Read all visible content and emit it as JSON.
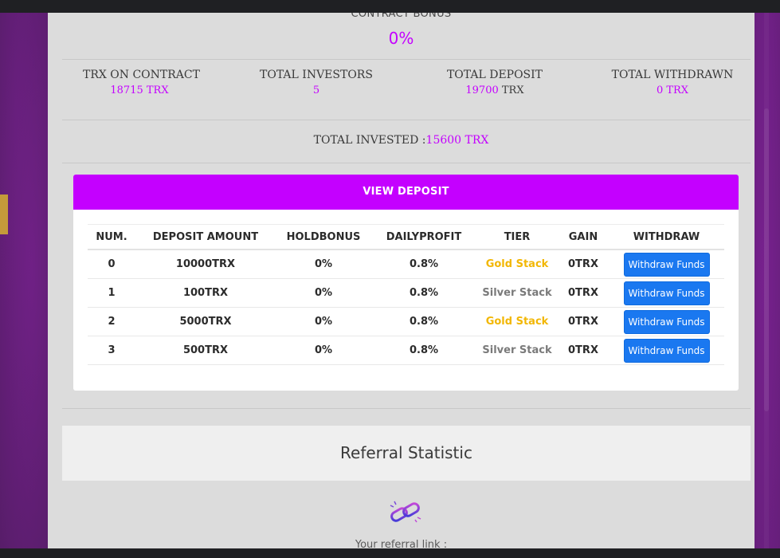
{
  "contract_bonus": {
    "label": "CONTRACT BONUS",
    "value": "0%"
  },
  "stats": [
    {
      "label": "TRX ON CONTRACT",
      "value": "18715 TRX",
      "unit": ""
    },
    {
      "label": "TOTAL INVESTORS",
      "value": "5",
      "unit": ""
    },
    {
      "label": "TOTAL DEPOSIT",
      "value": "19700",
      "unit": " TRX"
    },
    {
      "label": "TOTAL WITHDRAWN",
      "value": "0 TRX",
      "unit": ""
    }
  ],
  "total_invested": {
    "label": "TOTAL INVESTED :",
    "value": "15600 TRX"
  },
  "deposit_panel": {
    "title": "VIEW DEPOSIT",
    "columns": [
      "NUM.",
      "DEPOSIT AMOUNT",
      "HOLDBONUS",
      "DAILYPROFIT",
      "TIER",
      "GAIN",
      "WITHDRAW"
    ],
    "rows": [
      {
        "num": "0",
        "amount": "10000TRX",
        "holdbonus": "0%",
        "dailyprofit": "0.8%",
        "tier": "Gold Stack",
        "gain": "0TRX",
        "button": "Withdraw Funds"
      },
      {
        "num": "1",
        "amount": "100TRX",
        "holdbonus": "0%",
        "dailyprofit": "0.8%",
        "tier": "Silver Stack",
        "gain": "0TRX",
        "button": "Withdraw Funds"
      },
      {
        "num": "2",
        "amount": "5000TRX",
        "holdbonus": "0%",
        "dailyprofit": "0.8%",
        "tier": "Gold Stack",
        "gain": "0TRX",
        "button": "Withdraw Funds"
      },
      {
        "num": "3",
        "amount": "500TRX",
        "holdbonus": "0%",
        "dailyprofit": "0.8%",
        "tier": "Silver Stack",
        "gain": "0TRX",
        "button": "Withdraw Funds"
      }
    ]
  },
  "referral": {
    "title": "Referral Statistic",
    "icon": "link-icon",
    "link_label": "Your referral link :"
  },
  "colors": {
    "accent": "#c400ff",
    "button": "#1a78f0",
    "gold": "#f2b705",
    "silver": "#7a7a7a",
    "modal_bg": "#dcdcdc"
  }
}
